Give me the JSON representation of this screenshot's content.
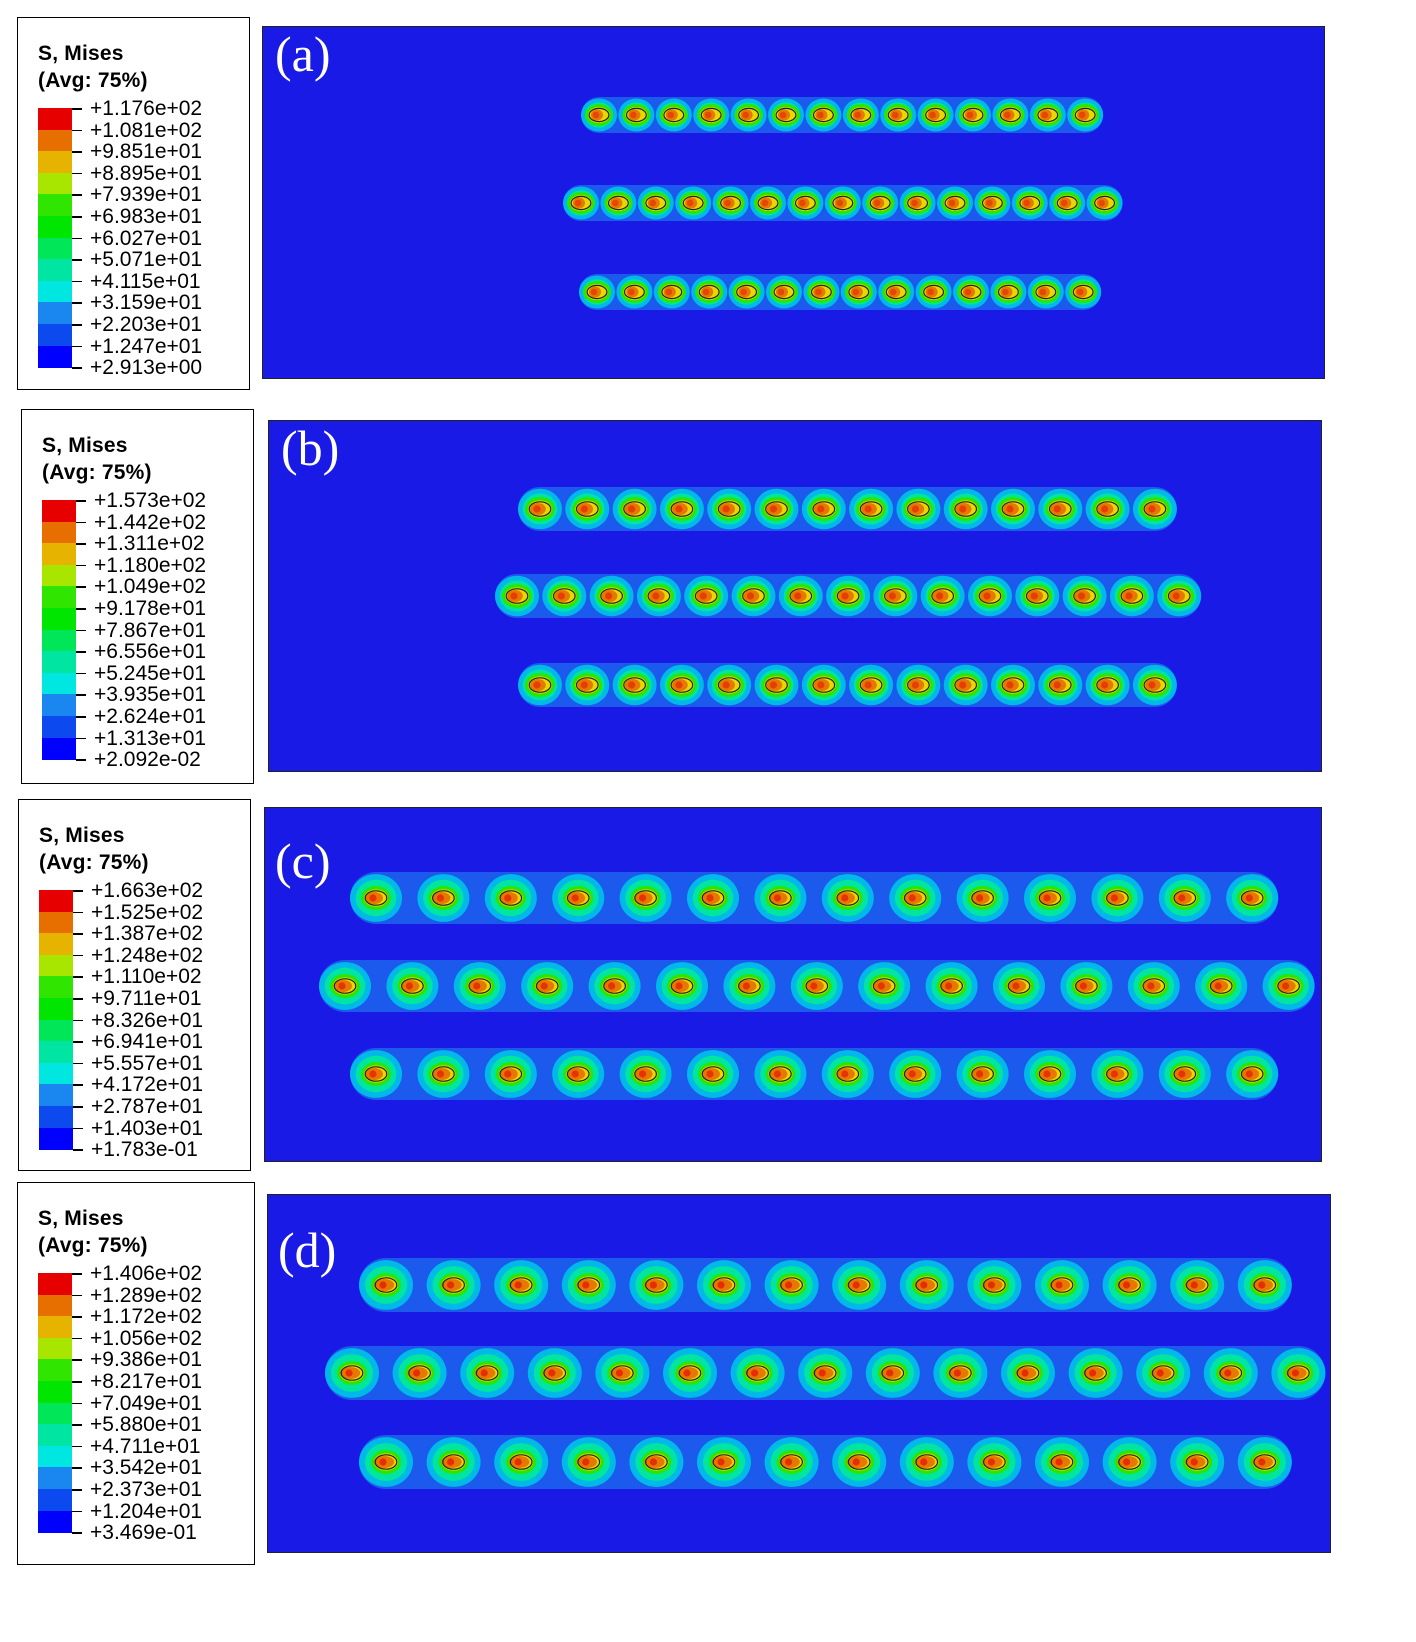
{
  "colors": {
    "plate": "#1a1ae6",
    "scale": [
      "#0000ff",
      "#0c4af0",
      "#1a86f0",
      "#00b4e6",
      "#00e6e0",
      "#00e6a2",
      "#00e659",
      "#00e600",
      "#30e600",
      "#a8e600",
      "#e6e600",
      "#e6b400",
      "#e66f00",
      "#e60000"
    ]
  },
  "panels": [
    {
      "label": "(a)",
      "legend_title": "S, Mises",
      "legend_subtitle": "(Avg: 75%)",
      "values": [
        "+1.176e+02",
        "+1.081e+02",
        "+9.851e+01",
        "+8.895e+01",
        "+7.939e+01",
        "+6.983e+01",
        "+6.027e+01",
        "+5.071e+01",
        "+4.115e+01",
        "+3.159e+01",
        "+2.203e+01",
        "+1.247e+01",
        "+2.913e+00"
      ]
    },
    {
      "label": "(b)",
      "legend_title": "S, Mises",
      "legend_subtitle": "(Avg: 75%)",
      "values": [
        "+1.573e+02",
        "+1.442e+02",
        "+1.311e+02",
        "+1.180e+02",
        "+1.049e+02",
        "+9.178e+01",
        "+7.867e+01",
        "+6.556e+01",
        "+5.245e+01",
        "+3.935e+01",
        "+2.624e+01",
        "+1.313e+01",
        "+2.092e-02"
      ]
    },
    {
      "label": "(c)",
      "legend_title": "S, Mises",
      "legend_subtitle": "(Avg: 75%)",
      "values": [
        "+1.663e+02",
        "+1.525e+02",
        "+1.387e+02",
        "+1.248e+02",
        "+1.110e+02",
        "+9.711e+01",
        "+8.326e+01",
        "+6.941e+01",
        "+5.557e+01",
        "+4.172e+01",
        "+2.787e+01",
        "+1.403e+01",
        "+1.783e-01"
      ]
    },
    {
      "label": "(d)",
      "legend_title": "S, Mises",
      "legend_subtitle": "(Avg: 75%)",
      "values": [
        "+1.406e+02",
        "+1.289e+02",
        "+1.172e+02",
        "+1.056e+02",
        "+9.386e+01",
        "+8.217e+01",
        "+7.049e+01",
        "+5.880e+01",
        "+4.711e+01",
        "+3.542e+01",
        "+2.373e+01",
        "+1.204e+01",
        "+3.469e-01"
      ]
    }
  ]
}
